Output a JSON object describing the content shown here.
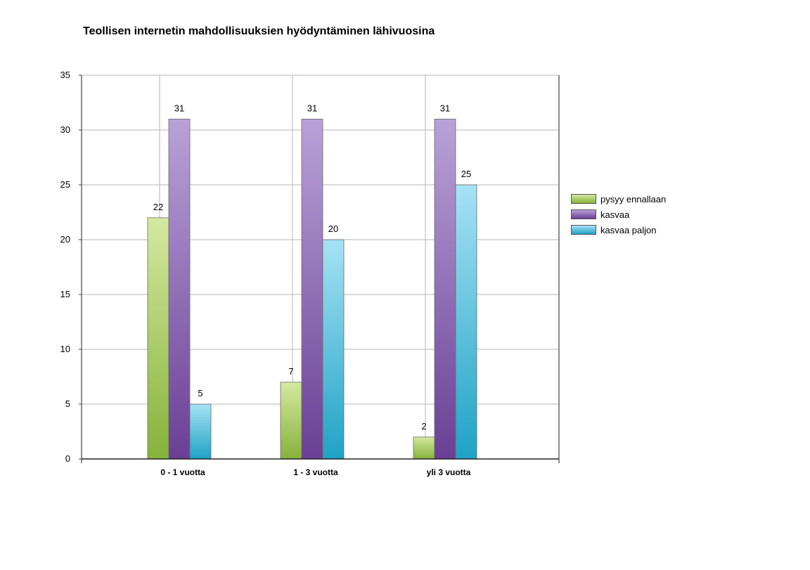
{
  "title": "Teollisen internetin mahdollisuuksien hyödyntäminen lähivuosina",
  "chart_data": {
    "type": "bar",
    "title": "Teollisen internetin mahdollisuuksien hyödyntäminen lähivuosina",
    "categories": [
      "0 - 1 vuotta",
      "1 - 3 vuotta",
      "yli 3 vuotta"
    ],
    "series": [
      {
        "name": "pysyy ennallaan",
        "values": [
          22,
          7,
          2
        ],
        "color_top": "#d4e8a0",
        "color_bottom": "#86b23a"
      },
      {
        "name": "kasvaa",
        "values": [
          31,
          31,
          31
        ],
        "color_top": "#b9a2d8",
        "color_bottom": "#6a3f95"
      },
      {
        "name": "kasvaa paljon",
        "values": [
          5,
          20,
          25
        ],
        "color_top": "#a6e2f5",
        "color_bottom": "#1fa2c4"
      }
    ],
    "xlabel": "",
    "ylabel": "",
    "ylim": [
      0,
      35
    ],
    "yticks": [
      0,
      5,
      10,
      15,
      20,
      25,
      30,
      35
    ],
    "grid": true,
    "legend_position": "right"
  }
}
